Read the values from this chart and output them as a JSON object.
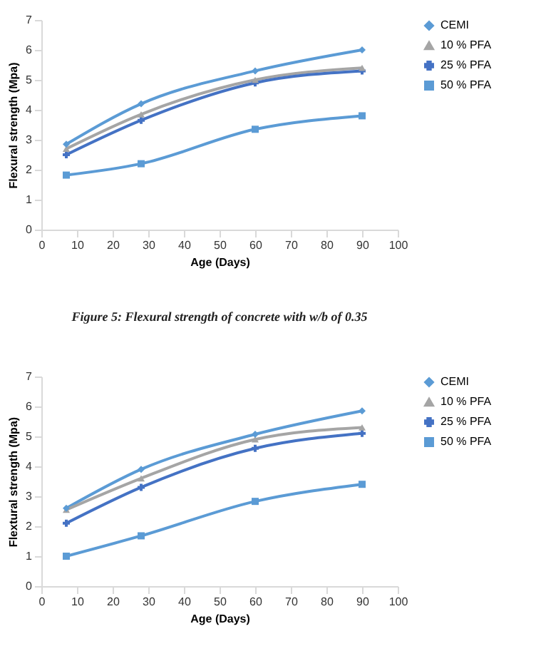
{
  "chart_data": [
    {
      "type": "line",
      "xlabel": "Age (Days)",
      "ylabel": "Flexural strength (Mpa)",
      "annotations": [
        "Figure 5: Flexural strength of concrete with w/b of 0.35"
      ],
      "x": [
        7,
        28,
        60,
        90
      ],
      "xlim": [
        0,
        100
      ],
      "xticks": [
        0,
        10,
        20,
        30,
        40,
        50,
        60,
        70,
        80,
        90,
        100
      ],
      "ylim": [
        0,
        7
      ],
      "yticks": [
        0,
        1,
        2,
        3,
        4,
        5,
        6,
        7
      ],
      "legend": "right",
      "line_style": "solid",
      "series": [
        {
          "name": "CEMI",
          "color": "#5b9bd5",
          "marker": "diamond",
          "values": [
            2.85,
            4.2,
            5.3,
            6.0
          ]
        },
        {
          "name": "10 % PFA",
          "color": "#a5a5a5",
          "marker": "triangle",
          "values": [
            2.7,
            3.85,
            5.0,
            5.4
          ]
        },
        {
          "name": "25 % PFA",
          "color": "#4472c4",
          "marker": "cross",
          "values": [
            2.5,
            3.65,
            4.9,
            5.3
          ]
        },
        {
          "name": "50 % PFA",
          "color": "#5b9bd5",
          "marker": "square",
          "values": [
            1.82,
            2.2,
            3.35,
            3.8
          ]
        }
      ]
    },
    {
      "type": "line",
      "xlabel": "Age (Days)",
      "ylabel": "Flextural strength (Mpa)",
      "x": [
        7,
        28,
        60,
        90
      ],
      "xlim": [
        0,
        100
      ],
      "xticks": [
        0,
        10,
        20,
        30,
        40,
        50,
        60,
        70,
        80,
        90,
        100
      ],
      "ylim": [
        0,
        7
      ],
      "yticks": [
        0,
        1,
        2,
        3,
        4,
        5,
        6,
        7
      ],
      "legend": "right",
      "line_style": "solid",
      "series": [
        {
          "name": "CEMI",
          "color": "#5b9bd5",
          "marker": "diamond",
          "values": [
            2.6,
            3.9,
            5.07,
            5.85
          ]
        },
        {
          "name": "10 % PFA",
          "color": "#a5a5a5",
          "marker": "triangle",
          "values": [
            2.55,
            3.6,
            4.9,
            5.3
          ]
        },
        {
          "name": "25 % PFA",
          "color": "#4472c4",
          "marker": "cross",
          "values": [
            2.1,
            3.3,
            4.6,
            5.1
          ]
        },
        {
          "name": "50 % PFA",
          "color": "#5b9bd5",
          "marker": "square",
          "values": [
            1.0,
            1.68,
            2.83,
            3.4
          ]
        }
      ]
    }
  ]
}
